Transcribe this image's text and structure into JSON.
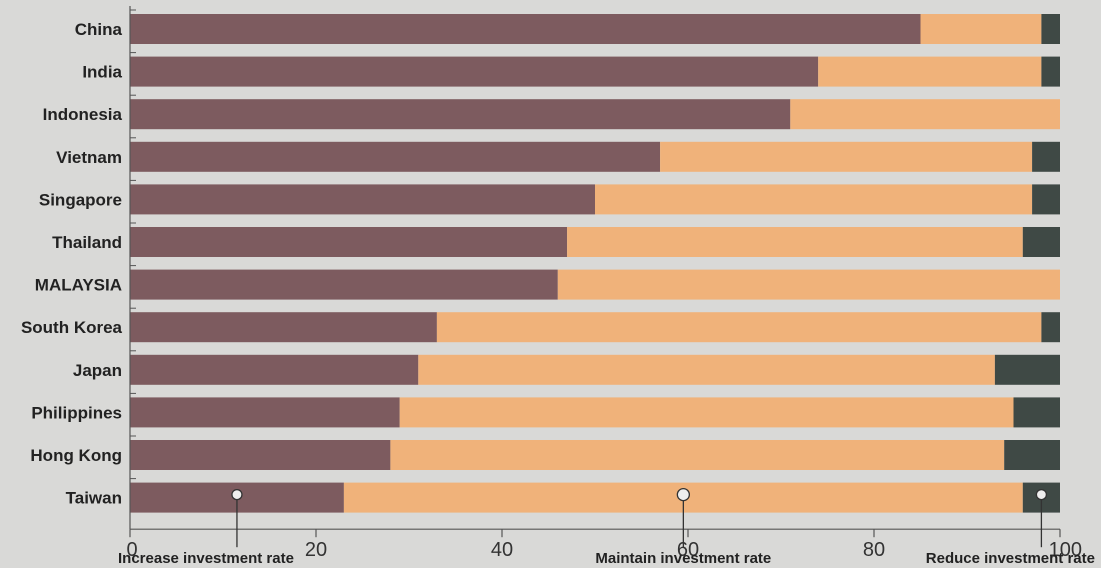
{
  "chart_data": {
    "type": "bar",
    "orientation": "horizontal",
    "stacked": true,
    "categories": [
      "China",
      "India",
      "Indonesia",
      "Vietnam",
      "Singapore",
      "Thailand",
      "MALAYSIA",
      "South Korea",
      "Japan",
      "Philippines",
      "Hong Kong",
      "Taiwan"
    ],
    "series": [
      {
        "name": "Increase investment rate",
        "color": "#7d5b5f",
        "values": [
          85,
          74,
          71,
          57,
          50,
          47,
          46,
          33,
          31,
          29,
          28,
          23
        ]
      },
      {
        "name": "Maintain investment rate",
        "color": "#f0b27a",
        "values": [
          13,
          24,
          29,
          40,
          47,
          49,
          54,
          65,
          62,
          66,
          66,
          73
        ]
      },
      {
        "name": "Reduce investment rate",
        "color": "#3f4945",
        "values": [
          2,
          2,
          0,
          3,
          3,
          4,
          0,
          2,
          7,
          5,
          6,
          4
        ]
      }
    ],
    "xlim": [
      0,
      100
    ],
    "xticks": [
      0,
      20,
      40,
      60,
      80,
      100
    ],
    "legend_placement": "bottom",
    "grid": false,
    "xlabel": "",
    "ylabel": ""
  }
}
